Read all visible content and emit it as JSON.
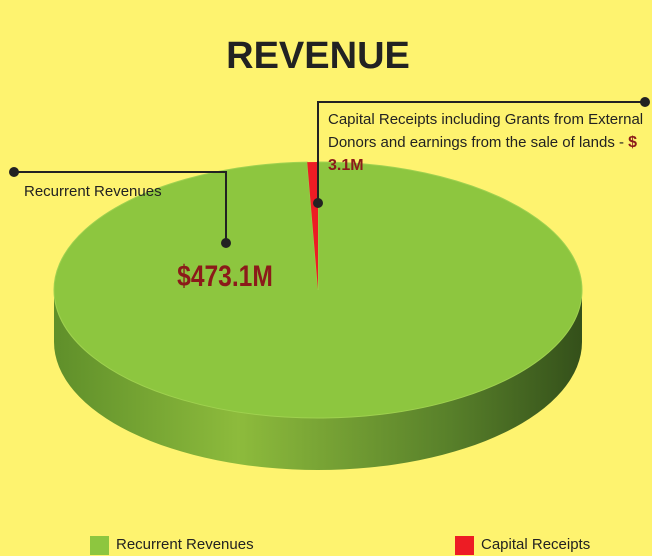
{
  "chart_data": {
    "type": "pie",
    "title": "REVENUE",
    "categories": [
      "Recurrent Revenues",
      "Capital Receipts"
    ],
    "values": [
      473.1,
      3.1
    ],
    "value_labels": [
      "$473.1M",
      "$ 3.1M"
    ],
    "colors": [
      "#8dc63f",
      "#ed1c24"
    ],
    "annotations": [
      "Capital Receipts including Grants from External Donors and earnings from the sale of lands -"
    ],
    "legend": "bottom"
  }
}
